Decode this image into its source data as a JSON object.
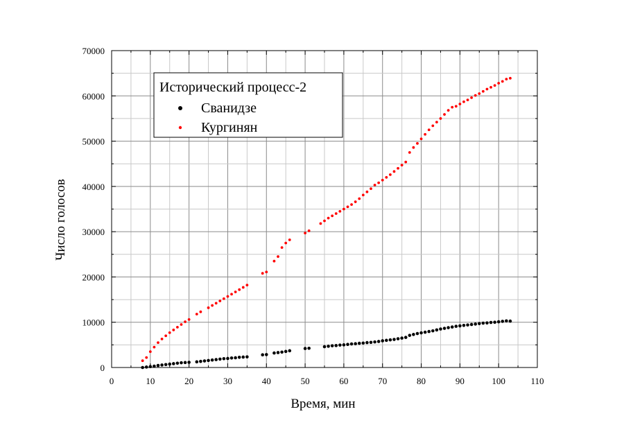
{
  "chart_data": {
    "type": "scatter",
    "xlabel": "Время, мин",
    "ylabel": "Число голосов",
    "xlim": [
      0,
      110
    ],
    "ylim": [
      0,
      70000
    ],
    "xticks": [
      0,
      10,
      20,
      30,
      40,
      50,
      60,
      70,
      80,
      90,
      100,
      110
    ],
    "yticks": [
      0,
      10000,
      20000,
      30000,
      40000,
      50000,
      60000,
      70000
    ],
    "grid": true,
    "legend": {
      "title": "Исторический процесс-2",
      "placement": "top-left"
    },
    "series": [
      {
        "name": "Сванидзе",
        "color": "#000000",
        "x": [
          8,
          9,
          10,
          11,
          12,
          13,
          14,
          15,
          16,
          17,
          18,
          19,
          20,
          22,
          23,
          24,
          25,
          26,
          27,
          28,
          29,
          30,
          31,
          32,
          33,
          34,
          35,
          39,
          40,
          42,
          43,
          44,
          45,
          46,
          50,
          51,
          55,
          56,
          57,
          58,
          59,
          60,
          61,
          62,
          63,
          64,
          65,
          66,
          67,
          68,
          69,
          70,
          71,
          72,
          73,
          74,
          75,
          76,
          77,
          78,
          79,
          80,
          81,
          82,
          83,
          84,
          85,
          86,
          87,
          88,
          89,
          90,
          91,
          92,
          93,
          94,
          95,
          96,
          97,
          98,
          99,
          100,
          101,
          102,
          103
        ],
        "y": [
          0,
          100,
          200,
          300,
          450,
          550,
          650,
          750,
          850,
          950,
          1050,
          1100,
          1150,
          1250,
          1350,
          1450,
          1550,
          1650,
          1750,
          1850,
          1950,
          2000,
          2100,
          2150,
          2250,
          2300,
          2350,
          2800,
          2850,
          3200,
          3300,
          3400,
          3550,
          3700,
          4200,
          4250,
          4600,
          4700,
          4800,
          4850,
          4950,
          5000,
          5100,
          5200,
          5250,
          5350,
          5400,
          5500,
          5550,
          5650,
          5750,
          5900,
          6000,
          6100,
          6200,
          6350,
          6500,
          6650,
          7100,
          7300,
          7500,
          7650,
          7800,
          7950,
          8100,
          8300,
          8500,
          8650,
          8800,
          8950,
          9100,
          9200,
          9300,
          9400,
          9500,
          9600,
          9700,
          9800,
          9850,
          9950,
          10000,
          10100,
          10200,
          10300,
          10250
        ]
      },
      {
        "name": "Кургинян",
        "color": "#ff0000",
        "x": [
          8,
          9,
          10,
          11,
          12,
          13,
          14,
          15,
          16,
          17,
          18,
          19,
          20,
          22,
          23,
          25,
          26,
          27,
          28,
          29,
          30,
          31,
          32,
          33,
          34,
          35,
          39,
          40,
          42,
          43,
          44,
          45,
          46,
          50,
          51,
          54,
          55,
          56,
          57,
          58,
          59,
          60,
          61,
          62,
          63,
          64,
          65,
          66,
          67,
          68,
          69,
          70,
          71,
          72,
          73,
          74,
          75,
          76,
          77,
          78,
          79,
          80,
          81,
          82,
          83,
          84,
          85,
          86,
          87,
          88,
          89,
          90,
          91,
          92,
          93,
          94,
          95,
          96,
          97,
          98,
          99,
          100,
          101,
          102,
          103
        ],
        "y": [
          1500,
          2200,
          3500,
          4500,
          5500,
          6300,
          7000,
          7700,
          8300,
          8900,
          9500,
          10100,
          10600,
          11800,
          12300,
          13200,
          13700,
          14200,
          14700,
          15200,
          15700,
          16200,
          16700,
          17200,
          17700,
          18200,
          20800,
          21100,
          23500,
          24500,
          26500,
          27500,
          28200,
          29700,
          30200,
          31800,
          32400,
          33000,
          33500,
          34000,
          34500,
          35000,
          35500,
          36000,
          36600,
          37300,
          38100,
          38800,
          39500,
          40300,
          40800,
          41400,
          42000,
          42600,
          43300,
          44000,
          44700,
          45400,
          47500,
          48600,
          49500,
          50500,
          51500,
          52500,
          53400,
          54200,
          55000,
          55900,
          56800,
          57500,
          57700,
          58200,
          58700,
          59100,
          59600,
          60100,
          60500,
          61000,
          61500,
          61900,
          62300,
          62800,
          63200,
          63700,
          63900
        ]
      }
    ]
  }
}
